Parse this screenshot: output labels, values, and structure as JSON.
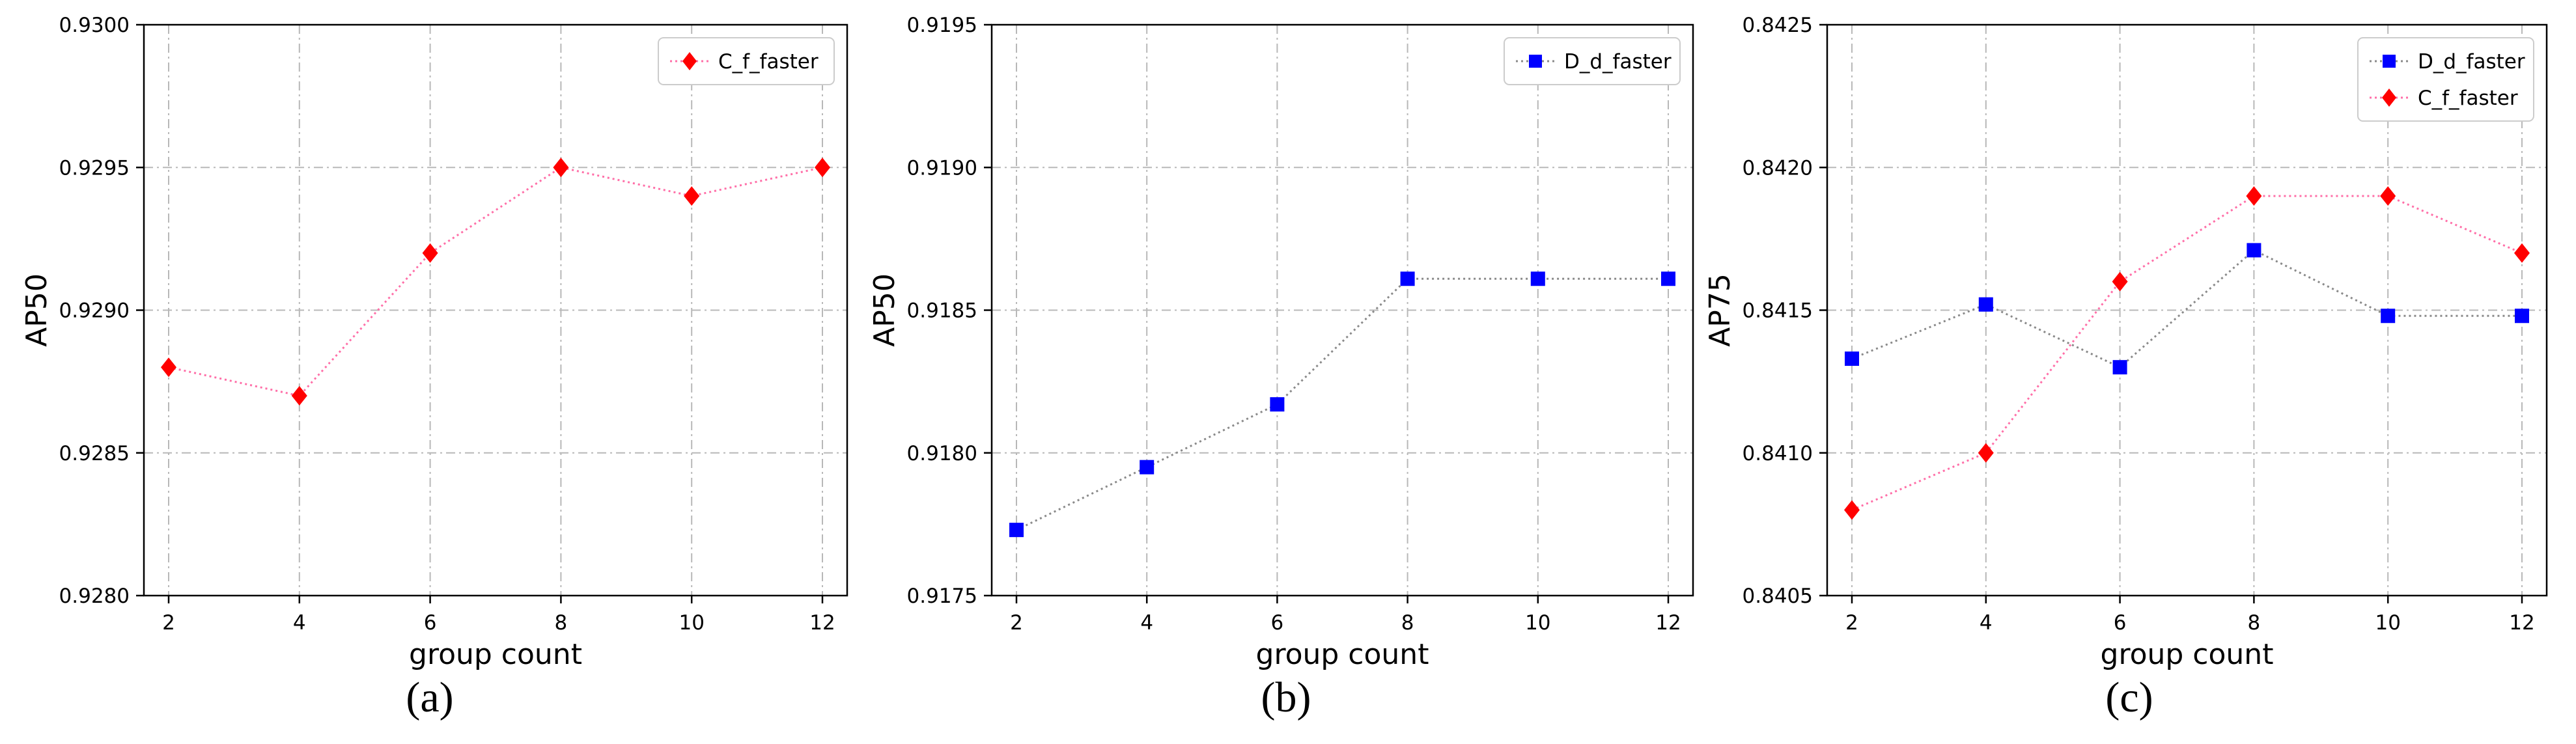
{
  "chart_data": [
    {
      "type": "line",
      "caption": "(a)",
      "xlabel": "group count",
      "ylabel": "AP50",
      "x": [
        2,
        4,
        6,
        8,
        10,
        12
      ],
      "xticks": [
        "2",
        "4",
        "6",
        "8",
        "10",
        "12"
      ],
      "ylim": [
        0.928,
        0.93
      ],
      "yticks": [
        "0.9280",
        "0.9285",
        "0.9290",
        "0.9295",
        "0.9300"
      ],
      "grid": true,
      "legend_position": "top-right",
      "series": [
        {
          "name": "C_f_faster",
          "values": [
            0.9288,
            0.9287,
            0.9292,
            0.9295,
            0.9294,
            0.9295
          ],
          "color": "#ff0000",
          "line_color": "#ff6fa8",
          "marker": "diamond"
        }
      ]
    },
    {
      "type": "line",
      "caption": "(b)",
      "xlabel": "group count",
      "ylabel": "AP50",
      "x": [
        2,
        4,
        6,
        8,
        10,
        12
      ],
      "xticks": [
        "2",
        "4",
        "6",
        "8",
        "10",
        "12"
      ],
      "ylim": [
        0.9175,
        0.9195
      ],
      "yticks": [
        "0.9175",
        "0.9180",
        "0.9185",
        "0.9190",
        "0.9195"
      ],
      "grid": true,
      "legend_position": "top-right",
      "series": [
        {
          "name": "D_d_faster",
          "values": [
            0.91773,
            0.91795,
            0.91817,
            0.91861,
            0.91861,
            0.91861
          ],
          "color": "#0000ff",
          "line_color": "#8a8a8a",
          "marker": "square"
        }
      ]
    },
    {
      "type": "line",
      "caption": "(c)",
      "xlabel": "group count",
      "ylabel": "AP75",
      "x": [
        2,
        4,
        6,
        8,
        10,
        12
      ],
      "xticks": [
        "2",
        "4",
        "6",
        "8",
        "10",
        "12"
      ],
      "ylim": [
        0.8405,
        0.8425
      ],
      "yticks": [
        "0.8405",
        "0.8410",
        "0.8415",
        "0.8420",
        "0.8425"
      ],
      "grid": true,
      "legend_position": "top-right",
      "series": [
        {
          "name": "D_d_faster",
          "values": [
            0.84133,
            0.84152,
            0.8413,
            0.84171,
            0.84148,
            0.84148
          ],
          "color": "#0000ff",
          "line_color": "#8a8a8a",
          "marker": "square"
        },
        {
          "name": "C_f_faster",
          "values": [
            0.8408,
            0.841,
            0.8416,
            0.8419,
            0.8419,
            0.8417
          ],
          "color": "#ff0000",
          "line_color": "#ff6fa8",
          "marker": "diamond"
        }
      ]
    }
  ]
}
